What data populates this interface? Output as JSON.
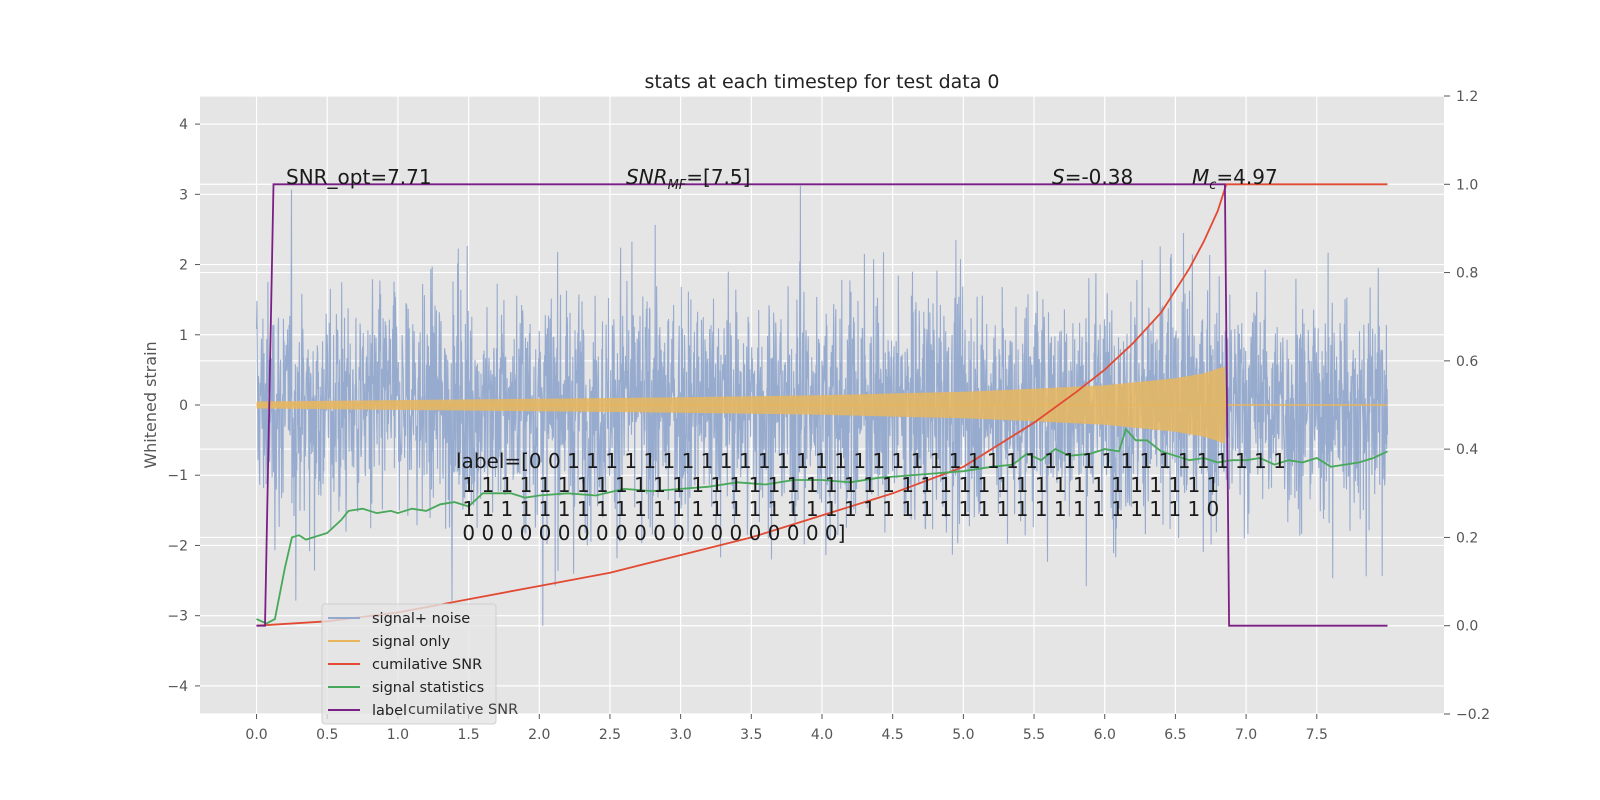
{
  "chart_data": {
    "type": "line",
    "title": "stats at each timestep for test data 0",
    "ylabel": "Whitened strain",
    "xlim": [
      -0.4,
      8.4
    ],
    "ylim": [
      -4.4,
      4.4
    ],
    "y2lim": [
      -0.2,
      1.2
    ],
    "x_ticks": [
      0.0,
      0.5,
      1.0,
      1.5,
      2.0,
      2.5,
      3.0,
      3.5,
      4.0,
      4.5,
      5.0,
      5.5,
      6.0,
      6.5,
      7.0,
      7.5
    ],
    "x_tick_labels": [
      "0.0",
      "0.5",
      "1.0",
      "1.5",
      "2.0",
      "2.5",
      "3.0",
      "3.5",
      "4.0",
      "4.5",
      "5.0",
      "5.5",
      "6.0",
      "6.5",
      "7.0",
      "7.5"
    ],
    "y_ticks": [
      -4,
      -3,
      -2,
      -1,
      0,
      1,
      2,
      3,
      4
    ],
    "y_tick_labels": [
      "−4",
      "−3",
      "−2",
      "−1",
      "0",
      "1",
      "2",
      "3",
      "4"
    ],
    "y2_ticks": [
      -0.2,
      0.0,
      0.2,
      0.4,
      0.6,
      0.8,
      1.0,
      1.2
    ],
    "y2_tick_labels": [
      "−0.2",
      "0.0",
      "0.2",
      "0.4",
      "0.6",
      "0.8",
      "1.0",
      "1.2"
    ],
    "grid": true,
    "legend_position": "lower-left",
    "series": [
      {
        "name": "signal+ noise",
        "axis": "left",
        "color": "#92a8cd",
        "description": "whitened noisy strain spanning roughly -3.5 to 3.8 across x 0 to 8"
      },
      {
        "name": "signal only",
        "axis": "left",
        "color": "#e8b65e",
        "envelope_x": [
          0.0,
          1.0,
          2.0,
          3.0,
          4.0,
          5.0,
          5.5,
          6.0,
          6.5,
          6.7,
          6.85,
          6.86,
          8.0
        ],
        "envelope_y": [
          0.05,
          0.07,
          0.09,
          0.11,
          0.14,
          0.19,
          0.23,
          0.28,
          0.38,
          0.45,
          0.55,
          0.0,
          0.0
        ]
      },
      {
        "name": "cumilative SNR",
        "axis": "right",
        "color": "#e24a33",
        "x": [
          0.0,
          0.5,
          1.0,
          1.5,
          2.0,
          2.5,
          3.0,
          3.5,
          4.0,
          4.5,
          5.0,
          5.5,
          5.8,
          6.0,
          6.2,
          6.4,
          6.6,
          6.7,
          6.8,
          6.86,
          7.0,
          7.5,
          8.0
        ],
        "y": [
          0.0,
          0.01,
          0.03,
          0.06,
          0.09,
          0.12,
          0.16,
          0.2,
          0.25,
          0.3,
          0.36,
          0.46,
          0.53,
          0.58,
          0.64,
          0.71,
          0.81,
          0.87,
          0.94,
          1.0,
          1.0,
          1.0,
          1.0
        ]
      },
      {
        "name": "signal statistics",
        "axis": "right",
        "color": "#48a85a",
        "x": [
          0.0,
          0.07,
          0.13,
          0.2,
          0.25,
          0.3,
          0.35,
          0.4,
          0.5,
          0.6,
          0.65,
          0.75,
          0.85,
          0.95,
          1.0,
          1.1,
          1.2,
          1.3,
          1.4,
          1.5,
          1.6,
          1.7,
          1.8,
          1.9,
          2.0,
          2.2,
          2.4,
          2.6,
          2.8,
          3.0,
          3.2,
          3.4,
          3.6,
          3.8,
          4.0,
          4.2,
          4.4,
          4.6,
          4.8,
          5.0,
          5.2,
          5.35,
          5.45,
          5.55,
          5.65,
          5.75,
          5.9,
          6.0,
          6.1,
          6.15,
          6.22,
          6.3,
          6.4,
          6.5,
          6.6,
          6.7,
          6.8,
          6.9,
          7.0,
          7.1,
          7.2,
          7.3,
          7.4,
          7.5,
          7.6,
          7.7,
          7.8,
          7.9,
          8.0
        ],
        "y": [
          0.015,
          0.005,
          0.015,
          0.13,
          0.2,
          0.205,
          0.195,
          0.2,
          0.21,
          0.24,
          0.26,
          0.265,
          0.255,
          0.26,
          0.255,
          0.265,
          0.26,
          0.275,
          0.28,
          0.27,
          0.3,
          0.3,
          0.3,
          0.29,
          0.295,
          0.3,
          0.295,
          0.31,
          0.305,
          0.31,
          0.315,
          0.325,
          0.32,
          0.33,
          0.33,
          0.325,
          0.335,
          0.34,
          0.345,
          0.35,
          0.36,
          0.365,
          0.39,
          0.375,
          0.4,
          0.385,
          0.39,
          0.4,
          0.395,
          0.445,
          0.42,
          0.42,
          0.395,
          0.385,
          0.375,
          0.38,
          0.37,
          0.375,
          0.375,
          0.38,
          0.365,
          0.375,
          0.37,
          0.38,
          0.36,
          0.365,
          0.37,
          0.38,
          0.395
        ]
      },
      {
        "name": "label",
        "axis": "right",
        "color": "#7a1f86",
        "x": [
          0.0,
          0.06,
          0.12,
          6.85,
          6.88,
          8.0
        ],
        "y": [
          0.0,
          0.0,
          1.0,
          1.0,
          0.0,
          0.0
        ]
      }
    ],
    "annotations": {
      "snr_opt": "SNR_opt=7.71",
      "snr_mf_main": "SNR",
      "snr_mf_sub": "MF",
      "snr_mf_value": "=[7.5]",
      "s_symbol": "S",
      "s_value": "=-0.38",
      "mc_symbol": "M",
      "mc_sub": "c",
      "mc_value": "=4.97",
      "label_lines": [
        "label=[0 0 1 1 1 1 1 1 1 1 1 1 1 1 1 1 1 1 1 1 1 1 1 1 1 1 1 1 1 1 1 1 1 1 1 1 1 1 1 1",
        " 1 1 1 1 1 1 1 1 1 1 1 1 1 1 1 1 1 1 1 1 1 1 1 1 1 1 1 1 1 1 1 1 1 1 1 1 1 1 1 1",
        " 1 1 1 1 1 1 1 1 1 1 1 1 1 1 1 1 1 1 1 1 1 1 1 1 1 1 1 1 1 1 1 1 1 1 1 1 1 1 1 0",
        " 0 0 0 0 0 0 0 0 0 0 0 0 0 0 0 0 0 0 0 0]"
      ]
    },
    "legend": {
      "entries": [
        "signal+ noise",
        "signal only",
        "cumilative SNR",
        "signal statistics",
        "label"
      ],
      "hidden_overlap_text": "cumilative SNR"
    }
  }
}
